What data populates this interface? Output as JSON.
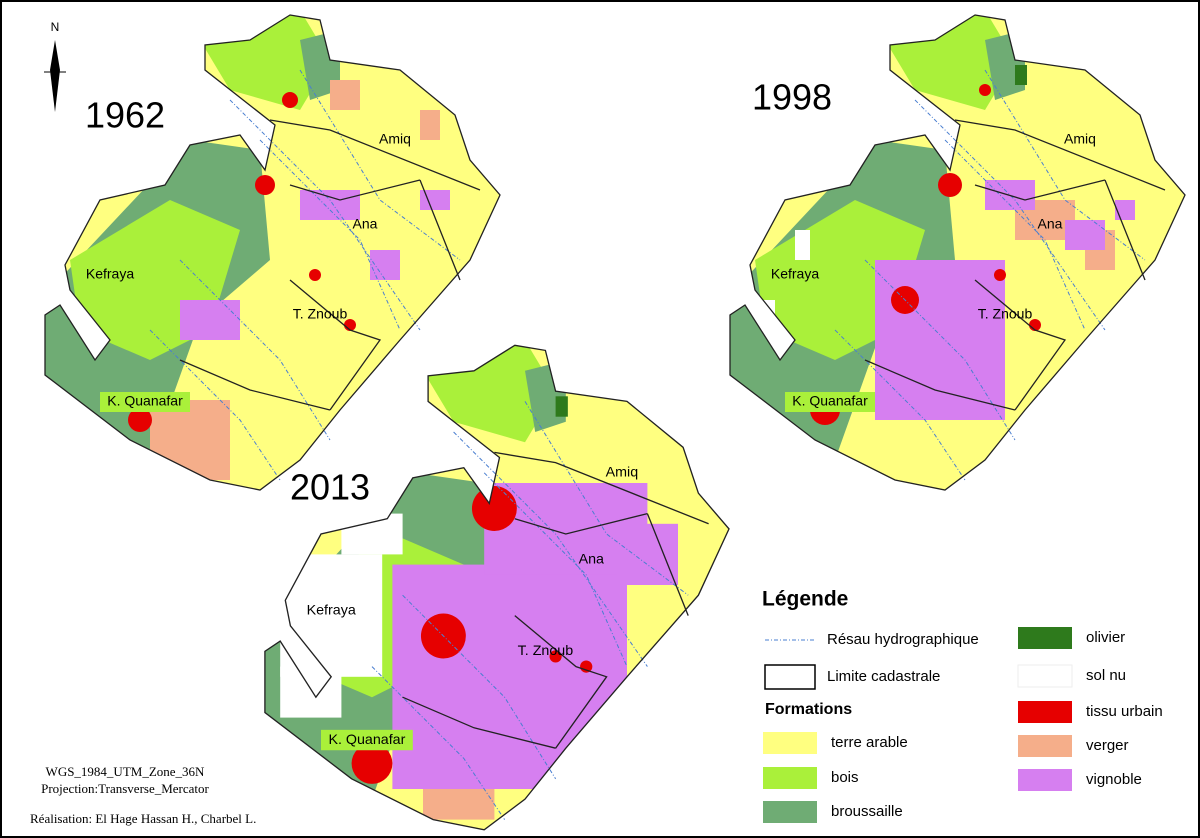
{
  "north_arrow": "N",
  "maps": [
    {
      "year": "1962",
      "places": [
        "Amiq",
        "Ana",
        "Kefraya",
        "T. Znoub",
        "K. Quanafar"
      ]
    },
    {
      "year": "1998",
      "places": [
        "Amiq",
        "Ana",
        "Kefraya",
        "T. Znoub",
        "K. Quanafar"
      ]
    },
    {
      "year": "2013",
      "places": [
        "Amiq",
        "Ana",
        "Kefraya",
        "T. Znoub",
        "K. Quanafar"
      ]
    }
  ],
  "legend": {
    "title": "Légende",
    "lines": [
      {
        "label": "Résau hydrographique"
      },
      {
        "label": "Limite cadastrale"
      }
    ],
    "formations_title": "Formations",
    "formations": [
      {
        "label": "terre arable",
        "color": "#ffff80"
      },
      {
        "label": "bois",
        "color": "#aaf03a"
      },
      {
        "label": "broussaille",
        "color": "#6fac74"
      },
      {
        "label": "olivier",
        "color": "#2e7a1c"
      },
      {
        "label": "sol nu",
        "color": "#ffffff"
      },
      {
        "label": "tissu urbain",
        "color": "#e60000"
      },
      {
        "label": "verger",
        "color": "#f5ae8a"
      },
      {
        "label": "vignoble",
        "color": "#d67ff0"
      }
    ]
  },
  "credits": [
    "WGS_1984_UTM_Zone_36N",
    "Projection:Transverse_Mercator",
    "Réalisation: El Hage Hassan H., Charbel L."
  ]
}
